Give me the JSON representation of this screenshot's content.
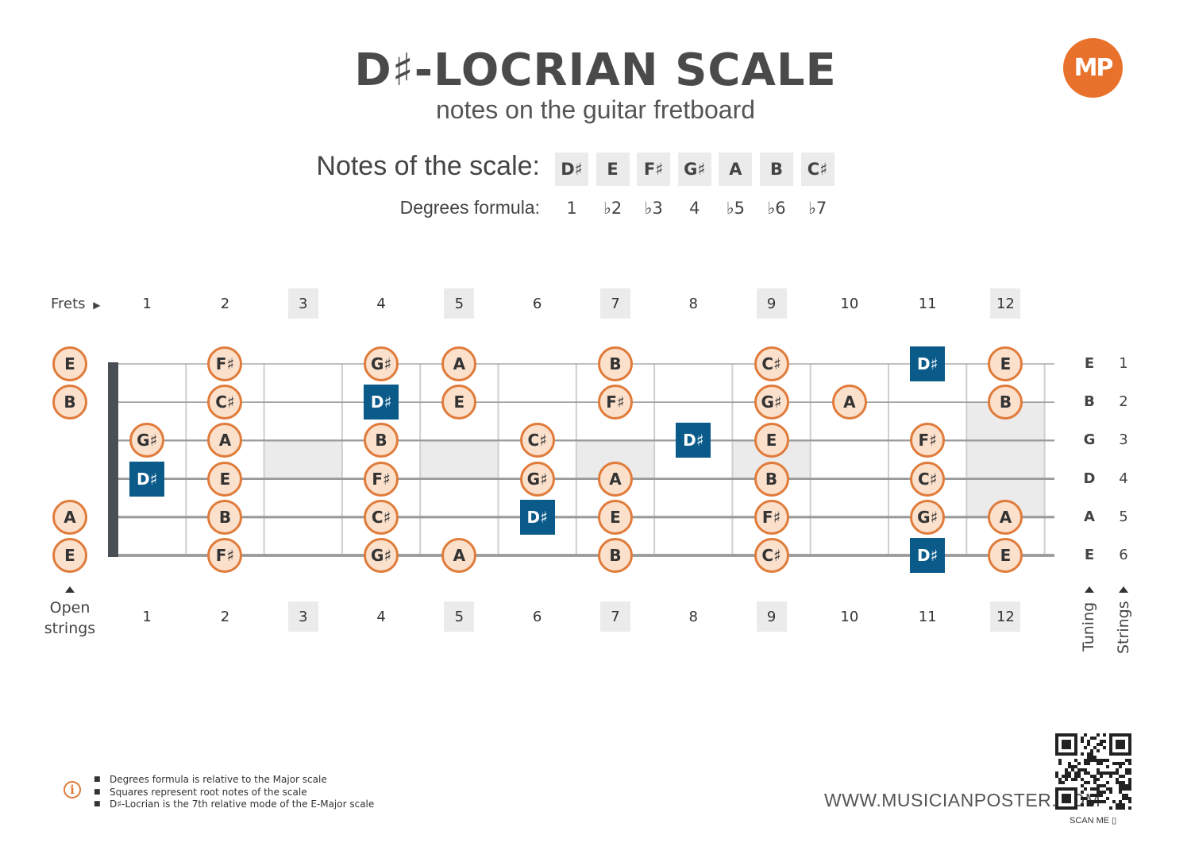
{
  "title": "D♯-LOCRIAN SCALE",
  "subtitle": "notes on the guitar fretboard",
  "logo": "MP",
  "scale": {
    "label": "Notes of the scale:",
    "notes": [
      "D♯",
      "E",
      "F♯",
      "G♯",
      "A",
      "B",
      "C♯"
    ],
    "formula_label": "Degrees formula:",
    "degrees": [
      "1",
      "♭2",
      "♭3",
      "4",
      "♭5",
      "♭6",
      "♭7"
    ]
  },
  "fretboard": {
    "frets_label": "Frets",
    "fret_numbers": [
      "1",
      "2",
      "3",
      "4",
      "5",
      "6",
      "7",
      "8",
      "9",
      "10",
      "11",
      "12"
    ],
    "marked_frets": [
      3,
      5,
      7,
      9,
      12
    ],
    "open_label_line1": "Open",
    "open_label_line2": "strings",
    "tuning_label": "Tuning",
    "strings_label": "Strings",
    "strings": [
      {
        "tuning": "E",
        "number": "1"
      },
      {
        "tuning": "B",
        "number": "2"
      },
      {
        "tuning": "G",
        "number": "3"
      },
      {
        "tuning": "D",
        "number": "4"
      },
      {
        "tuning": "A",
        "number": "5"
      },
      {
        "tuning": "E",
        "number": "6"
      }
    ],
    "notes": [
      {
        "s": 0,
        "f": 0,
        "n": "E"
      },
      {
        "s": 0,
        "f": 2,
        "n": "F♯"
      },
      {
        "s": 0,
        "f": 4,
        "n": "G♯"
      },
      {
        "s": 0,
        "f": 5,
        "n": "A"
      },
      {
        "s": 0,
        "f": 7,
        "n": "B"
      },
      {
        "s": 0,
        "f": 9,
        "n": "C♯"
      },
      {
        "s": 0,
        "f": 11,
        "n": "D♯",
        "root": true
      },
      {
        "s": 0,
        "f": 12,
        "n": "E"
      },
      {
        "s": 1,
        "f": 0,
        "n": "B"
      },
      {
        "s": 1,
        "f": 2,
        "n": "C♯"
      },
      {
        "s": 1,
        "f": 4,
        "n": "D♯",
        "root": true
      },
      {
        "s": 1,
        "f": 5,
        "n": "E"
      },
      {
        "s": 1,
        "f": 7,
        "n": "F♯"
      },
      {
        "s": 1,
        "f": 9,
        "n": "G♯"
      },
      {
        "s": 1,
        "f": 10,
        "n": "A"
      },
      {
        "s": 1,
        "f": 12,
        "n": "B"
      },
      {
        "s": 2,
        "f": 1,
        "n": "G♯"
      },
      {
        "s": 2,
        "f": 2,
        "n": "A"
      },
      {
        "s": 2,
        "f": 4,
        "n": "B"
      },
      {
        "s": 2,
        "f": 6,
        "n": "C♯"
      },
      {
        "s": 2,
        "f": 8,
        "n": "D♯",
        "root": true
      },
      {
        "s": 2,
        "f": 9,
        "n": "E"
      },
      {
        "s": 2,
        "f": 11,
        "n": "F♯"
      },
      {
        "s": 3,
        "f": 1,
        "n": "D♯",
        "root": true
      },
      {
        "s": 3,
        "f": 2,
        "n": "E"
      },
      {
        "s": 3,
        "f": 4,
        "n": "F♯"
      },
      {
        "s": 3,
        "f": 6,
        "n": "G♯"
      },
      {
        "s": 3,
        "f": 7,
        "n": "A"
      },
      {
        "s": 3,
        "f": 9,
        "n": "B"
      },
      {
        "s": 3,
        "f": 11,
        "n": "C♯"
      },
      {
        "s": 4,
        "f": 0,
        "n": "A"
      },
      {
        "s": 4,
        "f": 2,
        "n": "B"
      },
      {
        "s": 4,
        "f": 4,
        "n": "C♯"
      },
      {
        "s": 4,
        "f": 6,
        "n": "D♯",
        "root": true
      },
      {
        "s": 4,
        "f": 7,
        "n": "E"
      },
      {
        "s": 4,
        "f": 9,
        "n": "F♯"
      },
      {
        "s": 4,
        "f": 11,
        "n": "G♯"
      },
      {
        "s": 4,
        "f": 12,
        "n": "A"
      },
      {
        "s": 5,
        "f": 0,
        "n": "E"
      },
      {
        "s": 5,
        "f": 2,
        "n": "F♯"
      },
      {
        "s": 5,
        "f": 4,
        "n": "G♯"
      },
      {
        "s": 5,
        "f": 5,
        "n": "A"
      },
      {
        "s": 5,
        "f": 7,
        "n": "B"
      },
      {
        "s": 5,
        "f": 9,
        "n": "C♯"
      },
      {
        "s": 5,
        "f": 11,
        "n": "D♯",
        "root": true
      },
      {
        "s": 5,
        "f": 12,
        "n": "E"
      }
    ]
  },
  "footnotes": [
    "Degrees formula is relative to the Major scale",
    "Squares represent root notes of the scale",
    "D♯-Locrian is the 7th relative mode of the E-Major scale"
  ],
  "website": "WWW.MUSICIANPOSTER.COM",
  "scan_me": "SCAN ME",
  "colors": {
    "accent": "#e07b3a",
    "root": "#0a5a8a",
    "note_fill": "#fbe0cc"
  }
}
